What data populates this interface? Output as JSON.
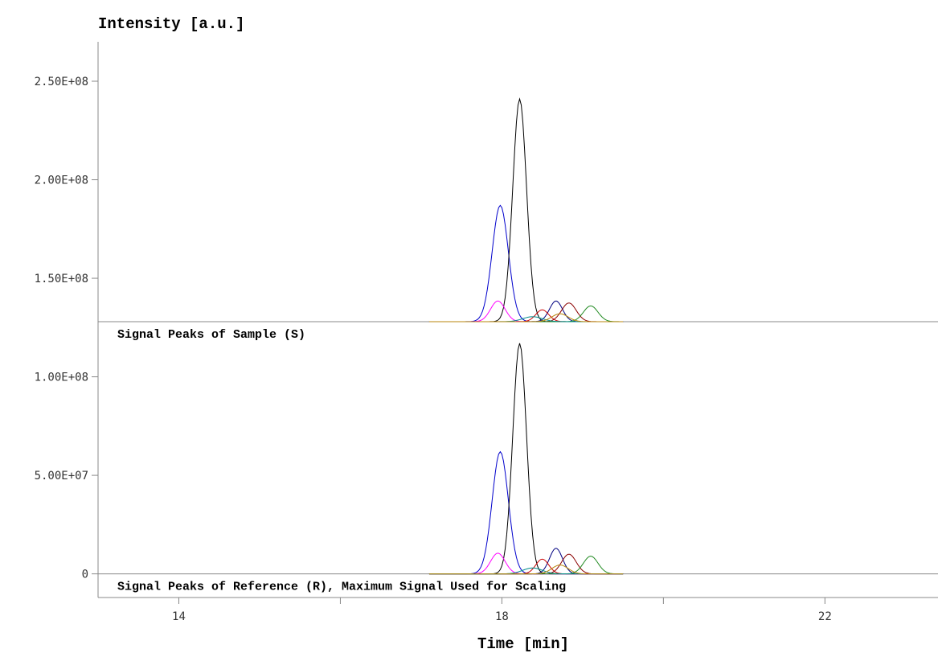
{
  "chart_data": {
    "type": "line",
    "title": "",
    "ylabel": "Intensity [a.u.]",
    "xlabel": "Time [min]",
    "x_ticks": [
      {
        "value": 14,
        "label": "14"
      },
      {
        "value": 16,
        "label": ""
      },
      {
        "value": 18,
        "label": "18"
      },
      {
        "value": 20,
        "label": ""
      },
      {
        "value": 22,
        "label": "22"
      }
    ],
    "y_ticks": [
      {
        "value": 0,
        "label": "0"
      },
      {
        "value": 50000000,
        "label": "5.00E+07"
      },
      {
        "value": 100000000,
        "label": "1.00E+08"
      },
      {
        "value": 150000000,
        "label": "1.50E+08"
      },
      {
        "value": 200000000,
        "label": "2.00E+08"
      },
      {
        "value": 250000000,
        "label": "2.50E+08"
      }
    ],
    "xlim": [
      13.0,
      23.4
    ],
    "ylim": [
      -12000000,
      270000000
    ],
    "grid": false,
    "panels": [
      {
        "name": "sample",
        "label": "Signal Peaks of Sample (S)",
        "baseline": 128000000,
        "series": [
          {
            "color": "#0000cc",
            "peaks": [
              {
                "center": 17.98,
                "height": 59000000,
                "sigma": 0.1
              }
            ]
          },
          {
            "color": "#000000",
            "peaks": [
              {
                "center": 18.22,
                "height": 113000000,
                "sigma": 0.085
              }
            ]
          },
          {
            "color": "#ff00ff",
            "peaks": [
              {
                "center": 17.95,
                "height": 10500000,
                "sigma": 0.09
              }
            ]
          },
          {
            "color": "#000080",
            "peaks": [
              {
                "center": 18.67,
                "height": 10500000,
                "sigma": 0.08
              }
            ]
          },
          {
            "color": "#cc0000",
            "peaks": [
              {
                "center": 18.5,
                "height": 6000000,
                "sigma": 0.08
              }
            ]
          },
          {
            "color": "#8b0000",
            "peaks": [
              {
                "center": 18.83,
                "height": 9500000,
                "sigma": 0.09
              }
            ]
          },
          {
            "color": "#228b22",
            "peaks": [
              {
                "center": 19.1,
                "height": 8000000,
                "sigma": 0.09
              }
            ]
          },
          {
            "color": "#008b8b",
            "peaks": [
              {
                "center": 18.38,
                "height": 2500000,
                "sigma": 0.12
              }
            ]
          },
          {
            "color": "#b8860b",
            "peaks": [
              {
                "center": 18.72,
                "height": 4000000,
                "sigma": 0.1
              }
            ]
          }
        ]
      },
      {
        "name": "reference",
        "label": "Signal Peaks of Reference (R), Maximum Signal Used for Scaling",
        "baseline": 0,
        "series": [
          {
            "color": "#0000cc",
            "peaks": [
              {
                "center": 17.98,
                "height": 62000000,
                "sigma": 0.1
              }
            ]
          },
          {
            "color": "#000000",
            "peaks": [
              {
                "center": 18.22,
                "height": 117000000,
                "sigma": 0.085
              }
            ]
          },
          {
            "color": "#ff00ff",
            "peaks": [
              {
                "center": 17.95,
                "height": 10500000,
                "sigma": 0.09
              }
            ]
          },
          {
            "color": "#000080",
            "peaks": [
              {
                "center": 18.67,
                "height": 13000000,
                "sigma": 0.08
              }
            ]
          },
          {
            "color": "#cc0000",
            "peaks": [
              {
                "center": 18.5,
                "height": 7500000,
                "sigma": 0.08
              }
            ]
          },
          {
            "color": "#8b0000",
            "peaks": [
              {
                "center": 18.83,
                "height": 10000000,
                "sigma": 0.09
              }
            ]
          },
          {
            "color": "#228b22",
            "peaks": [
              {
                "center": 19.1,
                "height": 9000000,
                "sigma": 0.09
              }
            ]
          },
          {
            "color": "#008b8b",
            "peaks": [
              {
                "center": 18.38,
                "height": 3000000,
                "sigma": 0.12
              }
            ]
          },
          {
            "color": "#b8860b",
            "peaks": [
              {
                "center": 18.72,
                "height": 4500000,
                "sigma": 0.1
              }
            ]
          }
        ]
      }
    ],
    "x_range_of_traces": [
      17.1,
      19.5
    ]
  }
}
